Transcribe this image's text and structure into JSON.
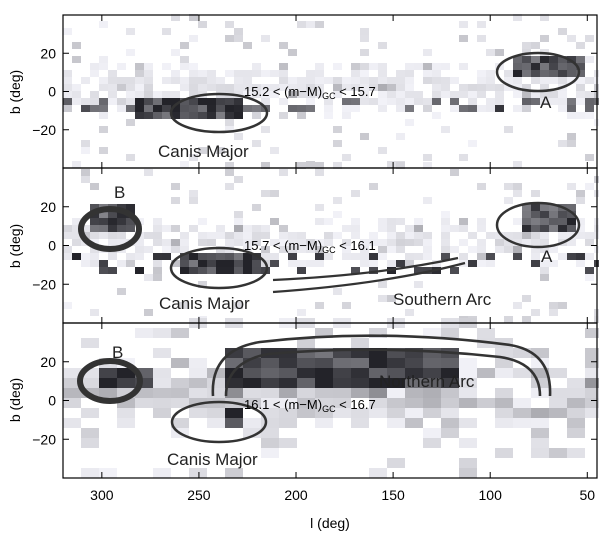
{
  "figure": {
    "xlabel": "l (deg)",
    "ylabel": "b (deg)",
    "x_ticks": [
      "300",
      "250",
      "200",
      "150",
      "100",
      "50"
    ],
    "y_ticks": [
      "20",
      "0",
      "−20"
    ]
  },
  "chart_data": [
    {
      "type": "heatmap",
      "panel": "top",
      "distance_range": {
        "low": "15.2",
        "high": "15.7",
        "quantity": "(m−M)",
        "subscript": "GC"
      },
      "xlabel": "",
      "ylabel": "b (deg)",
      "xlim": [
        320,
        45
      ],
      "ylim": [
        -40,
        40
      ],
      "annotations": [
        {
          "label": "Canis Major",
          "l": 242,
          "b": -15
        },
        {
          "label": "A",
          "l": 75,
          "b": 12
        }
      ],
      "dense_regions": [
        {
          "l_range": [
            285,
            230
          ],
          "b_range": [
            -18,
            -5
          ],
          "level": "high"
        },
        {
          "l_range": [
            90,
            55
          ],
          "b_range": [
            6,
            15
          ],
          "level": "high"
        }
      ]
    },
    {
      "type": "heatmap",
      "panel": "middle",
      "distance_range": {
        "low": "15.7",
        "high": "16.1",
        "quantity": "(m−M)",
        "subscript": "GC"
      },
      "xlabel": "",
      "ylabel": "b (deg)",
      "xlim": [
        320,
        45
      ],
      "ylim": [
        -40,
        40
      ],
      "annotations": [
        {
          "label": "B",
          "l": 297,
          "b": 12
        },
        {
          "label": "Canis Major",
          "l": 242,
          "b": -15
        },
        {
          "label": "Southern Arc",
          "l": 165,
          "b": -25
        },
        {
          "label": "A",
          "l": 75,
          "b": 12
        }
      ],
      "dense_regions": [
        {
          "l_range": [
            310,
            285
          ],
          "b_range": [
            5,
            18
          ],
          "level": "high"
        },
        {
          "l_range": [
            260,
            225
          ],
          "b_range": [
            -18,
            -5
          ],
          "level": "high"
        },
        {
          "l_range": [
            85,
            60
          ],
          "b_range": [
            5,
            18
          ],
          "level": "high"
        }
      ]
    },
    {
      "type": "heatmap",
      "panel": "bottom",
      "distance_range": {
        "low": "16.1",
        "high": "16.7",
        "quantity": "(m−M)",
        "subscript": "GC"
      },
      "xlabel": "l (deg)",
      "ylabel": "b (deg)",
      "xlim": [
        320,
        45
      ],
      "ylim": [
        -40,
        40
      ],
      "annotations": [
        {
          "label": "B",
          "l": 300,
          "b": 12
        },
        {
          "label": "Northern Arc",
          "l": 150,
          "b": 20
        },
        {
          "label": "Canis Major",
          "l": 242,
          "b": -15
        }
      ],
      "dense_regions": [
        {
          "l_range": [
            310,
            280
          ],
          "b_range": [
            5,
            15
          ],
          "level": "high"
        },
        {
          "l_range": [
            240,
            120
          ],
          "b_range": [
            5,
            25
          ],
          "level": "high"
        },
        {
          "l_range": [
            245,
            235
          ],
          "b_range": [
            -15,
            -8
          ],
          "level": "high"
        }
      ]
    }
  ]
}
